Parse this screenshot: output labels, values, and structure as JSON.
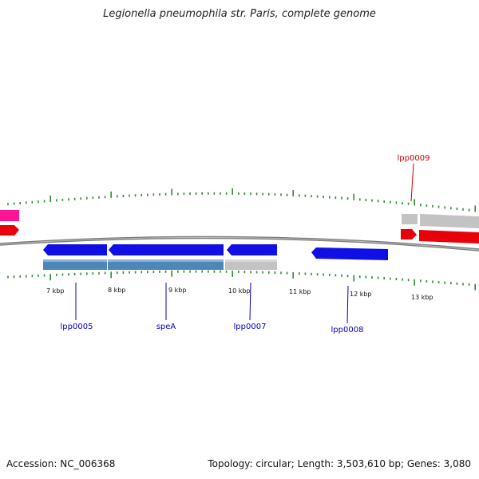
{
  "title": "Legionella pneumophila str. Paris, complete genome",
  "footer": {
    "accession": "Accession: NC_006368",
    "summary": "Topology: circular; Length: 3,503,610 bp; Genes: 3,080"
  },
  "colors": {
    "backbone": "#7a7a7a",
    "tick": "#2e8b2e",
    "forward_cds": "#e8000a",
    "reverse_cds": "#1010e6",
    "gene_feature": "#4f86b8",
    "other_feature": "#c3c3c3",
    "pink_feature": "#ff1493",
    "red_label": "#cc0000",
    "blue_label": "#0000cc"
  },
  "scale_labels": [
    "7 kbp",
    "8 kbp",
    "9 kbp",
    "10 kbp",
    "11 kbp",
    "12 kbp",
    "13 kbp"
  ],
  "genes": [
    {
      "name": "lpp0005",
      "strand": "reverse"
    },
    {
      "name": "speA",
      "strand": "reverse"
    },
    {
      "name": "lpp0007",
      "strand": "reverse"
    },
    {
      "name": "lpp0008",
      "strand": "reverse"
    },
    {
      "name": "lpp0009",
      "strand": "forward"
    }
  ]
}
